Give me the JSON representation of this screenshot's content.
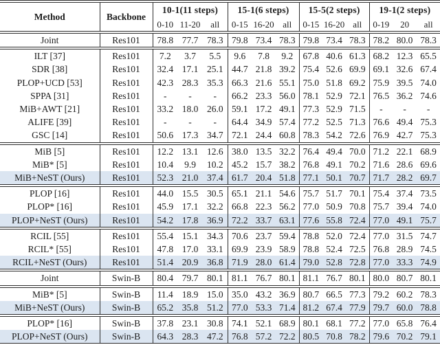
{
  "colors": {
    "highlight_row": "#dbe5f1",
    "rule": "#2b2b2b",
    "text": "#1c1c1c"
  },
  "header": {
    "method": "Method",
    "backbone": "Backbone",
    "groups": [
      {
        "title": "10-1(11 steps)",
        "subs": [
          "0-10",
          "11-20",
          "all"
        ]
      },
      {
        "title": "15-1(6 steps)",
        "subs": [
          "0-15",
          "16-20",
          "all"
        ]
      },
      {
        "title": "15-5(2 steps)",
        "subs": [
          "0-15",
          "16-20",
          "all"
        ]
      },
      {
        "title": "19-1(2 steps)",
        "subs": [
          "0-19",
          "20",
          "all"
        ]
      }
    ]
  },
  "sections": [
    {
      "rows": [
        {
          "method": "Joint",
          "backbone": "Res101",
          "highlight": false,
          "values": [
            "78.8",
            "77.7",
            "78.3",
            "79.8",
            "73.4",
            "78.3",
            "79.8",
            "73.4",
            "78.3",
            "78.2",
            "80.0",
            "78.3"
          ]
        }
      ]
    },
    {
      "rows": [
        {
          "method": "ILT [37]",
          "backbone": "Res101",
          "highlight": false,
          "values": [
            "7.2",
            "3.7",
            "5.5",
            "9.6",
            "7.8",
            "9.2",
            "67.8",
            "40.6",
            "61.3",
            "68.2",
            "12.3",
            "65.5"
          ]
        },
        {
          "method": "SDR [38]",
          "backbone": "Res101",
          "highlight": false,
          "values": [
            "32.4",
            "17.1",
            "25.1",
            "44.7",
            "21.8",
            "39.2",
            "75.4",
            "52.6",
            "69.9",
            "69.1",
            "32.6",
            "67.4"
          ]
        },
        {
          "method": "PLOP+UCD [53]",
          "backbone": "Res101",
          "highlight": false,
          "values": [
            "42.3",
            "28.3",
            "35.3",
            "66.3",
            "21.6",
            "55.1",
            "75.0",
            "51.8",
            "69.2",
            "75.9",
            "39.5",
            "74.0"
          ]
        },
        {
          "method": "SPPA [31]",
          "backbone": "Res101",
          "highlight": false,
          "values": [
            "-",
            "-",
            "-",
            "66.2",
            "23.3",
            "56.0",
            "78.1",
            "52.9",
            "72.1",
            "76.5",
            "36.2",
            "74.6"
          ]
        },
        {
          "method": "MiB+AWT [21]",
          "backbone": "Res101",
          "highlight": false,
          "values": [
            "33.2",
            "18.0",
            "26.0",
            "59.1",
            "17.2",
            "49.1",
            "77.3",
            "52.9",
            "71.5",
            "-",
            "-",
            "-"
          ]
        },
        {
          "method": "ALIFE [39]",
          "backbone": "Res101",
          "highlight": false,
          "values": [
            "-",
            "-",
            "-",
            "64.4",
            "34.9",
            "57.4",
            "77.2",
            "52.5",
            "71.3",
            "76.6",
            "49.4",
            "75.3"
          ]
        },
        {
          "method": "GSC [14]",
          "backbone": "Res101",
          "highlight": false,
          "values": [
            "50.6",
            "17.3",
            "34.7",
            "72.1",
            "24.4",
            "60.8",
            "78.3",
            "54.2",
            "72.6",
            "76.9",
            "42.7",
            "75.3"
          ]
        }
      ]
    },
    {
      "rows": [
        {
          "method": "MiB [5]",
          "backbone": "Res101",
          "highlight": false,
          "values": [
            "12.2",
            "13.1",
            "12.6",
            "38.0",
            "13.5",
            "32.2",
            "76.4",
            "49.4",
            "70.0",
            "71.2",
            "22.1",
            "68.9"
          ]
        },
        {
          "method": "MiB* [5]",
          "backbone": "Res101",
          "highlight": false,
          "values": [
            "10.4",
            "9.9",
            "10.2",
            "45.2",
            "15.7",
            "38.2",
            "76.8",
            "49.1",
            "70.2",
            "71.6",
            "28.6",
            "69.6"
          ]
        },
        {
          "method": "MiB+NeST (Ours)",
          "backbone": "Res101",
          "highlight": true,
          "values": [
            "52.3",
            "21.0",
            "37.4",
            "61.7",
            "20.4",
            "51.8",
            "77.1",
            "50.1",
            "70.7",
            "71.7",
            "28.2",
            "69.7"
          ]
        }
      ]
    },
    {
      "rows": [
        {
          "method": "PLOP [16]",
          "backbone": "Res101",
          "highlight": false,
          "values": [
            "44.0",
            "15.5",
            "30.5",
            "65.1",
            "21.1",
            "54.6",
            "75.7",
            "51.7",
            "70.1",
            "75.4",
            "37.4",
            "73.5"
          ]
        },
        {
          "method": "PLOP* [16]",
          "backbone": "Res101",
          "highlight": false,
          "values": [
            "45.9",
            "17.1",
            "32.2",
            "66.8",
            "22.3",
            "56.2",
            "77.0",
            "50.9",
            "70.8",
            "75.7",
            "39.4",
            "74.0"
          ]
        },
        {
          "method": "PLOP+NeST (Ours)",
          "backbone": "Res101",
          "highlight": true,
          "values": [
            "54.2",
            "17.8",
            "36.9",
            "72.2",
            "33.7",
            "63.1",
            "77.6",
            "55.8",
            "72.4",
            "77.0",
            "49.1",
            "75.7"
          ]
        }
      ]
    },
    {
      "rows": [
        {
          "method": "RCIL [55]",
          "backbone": "Res101",
          "highlight": false,
          "values": [
            "55.4",
            "15.1",
            "34.3",
            "70.6",
            "23.7",
            "59.4",
            "78.8",
            "52.0",
            "72.4",
            "77.0",
            "31.5",
            "74.7"
          ]
        },
        {
          "method": "RCIL* [55]",
          "backbone": "Res101",
          "highlight": false,
          "values": [
            "47.8",
            "17.0",
            "33.1",
            "69.9",
            "23.9",
            "58.9",
            "78.8",
            "52.4",
            "72.5",
            "76.8",
            "28.9",
            "74.5"
          ]
        },
        {
          "method": "RCIL+NeST (Ours)",
          "backbone": "Res101",
          "highlight": true,
          "values": [
            "51.4",
            "20.9",
            "36.8",
            "71.9",
            "28.0",
            "61.4",
            "79.0",
            "52.8",
            "72.8",
            "77.0",
            "33.3",
            "74.9"
          ]
        }
      ]
    },
    {
      "rows": [
        {
          "method": "Joint",
          "backbone": "Swin-B",
          "highlight": false,
          "values": [
            "80.4",
            "79.7",
            "80.1",
            "81.1",
            "76.7",
            "80.1",
            "81.1",
            "76.7",
            "80.1",
            "80.0",
            "80.7",
            "80.1"
          ]
        }
      ]
    },
    {
      "rows": [
        {
          "method": "MiB* [5]",
          "backbone": "Swin-B",
          "highlight": false,
          "values": [
            "11.4",
            "18.9",
            "15.0",
            "35.0",
            "43.2",
            "36.9",
            "80.7",
            "66.5",
            "77.3",
            "79.2",
            "60.2",
            "78.3"
          ]
        },
        {
          "method": "MiB+NeST (Ours)",
          "backbone": "Swin-B",
          "highlight": true,
          "values": [
            "65.2",
            "35.8",
            "51.2",
            "77.0",
            "53.3",
            "71.4",
            "81.2",
            "67.4",
            "77.9",
            "79.7",
            "60.0",
            "78.8"
          ]
        }
      ]
    },
    {
      "rows": [
        {
          "method": "PLOP* [16]",
          "backbone": "Swin-B",
          "highlight": false,
          "values": [
            "37.8",
            "23.1",
            "30.8",
            "74.1",
            "52.1",
            "68.9",
            "80.1",
            "68.1",
            "77.2",
            "77.0",
            "65.8",
            "76.4"
          ]
        },
        {
          "method": "PLOP+NeST (Ours)",
          "backbone": "Swin-B",
          "highlight": true,
          "values": [
            "64.3",
            "28.3",
            "47.2",
            "76.8",
            "57.2",
            "72.2",
            "80.5",
            "70.8",
            "78.2",
            "79.6",
            "70.2",
            "79.1"
          ]
        }
      ]
    }
  ]
}
